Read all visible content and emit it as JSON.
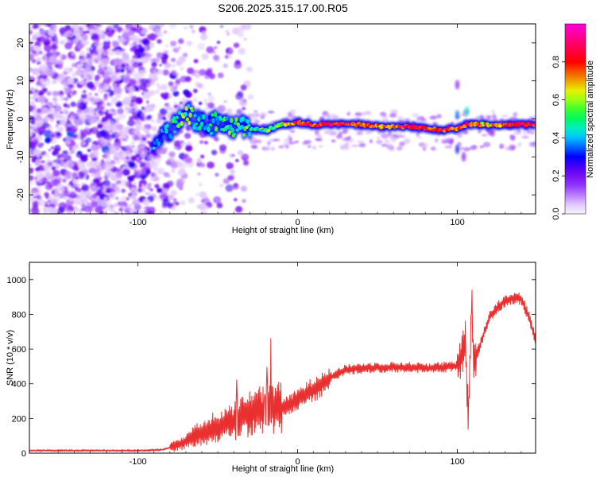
{
  "title": "S206.2025.315.17.00.R05",
  "chart_data": [
    {
      "type": "heatmap",
      "xlabel": "Height of straight line (km)",
      "ylabel": "Frequency (Hz)",
      "xlim": [
        -168,
        149
      ],
      "ylim": [
        -25,
        25
      ],
      "xticks": [
        -100,
        0,
        100
      ],
      "xtick_labels": [
        "-100",
        "0",
        "100"
      ],
      "yticks": [
        -20,
        -10,
        0,
        10,
        20
      ],
      "ytick_labels": [
        "-20",
        "-10",
        "0",
        "10",
        "20"
      ],
      "colorbar": {
        "label": "Normalized spectral amplitude",
        "range": [
          0,
          1
        ],
        "ticks": [
          0.0,
          0.2,
          0.4,
          0.6,
          0.8
        ],
        "tick_labels": [
          "0.0",
          "0.2",
          "0.4",
          "0.6",
          "0.8"
        ],
        "colormap": "rainbow",
        "colors": [
          "#f0f0ff",
          "#e0c8ff",
          "#8800ff",
          "#0000ff",
          "#00ffff",
          "#00ff00",
          "#ffff00",
          "#ff0000",
          "#ff00ff"
        ]
      },
      "ridge": [
        {
          "x": -90,
          "y": -5.5,
          "amp": 0.3
        },
        {
          "x": -80,
          "y": -3,
          "amp": 0.4
        },
        {
          "x": -70,
          "y": 2,
          "amp": 0.55
        },
        {
          "x": -60,
          "y": -2,
          "amp": 0.4
        },
        {
          "x": -50,
          "y": -1,
          "amp": 0.45
        },
        {
          "x": -40,
          "y": -2,
          "amp": 0.5
        },
        {
          "x": -30,
          "y": -2.5,
          "amp": 0.5
        },
        {
          "x": -20,
          "y": -3,
          "amp": 0.5
        },
        {
          "x": -10,
          "y": -1.5,
          "amp": 0.6
        },
        {
          "x": 0,
          "y": -1,
          "amp": 0.8
        },
        {
          "x": 10,
          "y": -1.5,
          "amp": 0.8
        },
        {
          "x": 20,
          "y": -1.5,
          "amp": 0.9
        },
        {
          "x": 30,
          "y": -1.5,
          "amp": 0.8
        },
        {
          "x": 40,
          "y": -1.5,
          "amp": 0.75
        },
        {
          "x": 50,
          "y": -2,
          "amp": 0.7
        },
        {
          "x": 60,
          "y": -2,
          "amp": 0.75
        },
        {
          "x": 70,
          "y": -2,
          "amp": 0.85
        },
        {
          "x": 80,
          "y": -2.5,
          "amp": 0.8
        },
        {
          "x": 90,
          "y": -3,
          "amp": 0.85
        },
        {
          "x": 100,
          "y": -2.5,
          "amp": 0.7
        },
        {
          "x": 106,
          "y": -1.5,
          "amp": 0.85
        },
        {
          "x": 110,
          "y": -1.5,
          "amp": 0.7
        },
        {
          "x": 120,
          "y": -1.5,
          "amp": 0.7
        },
        {
          "x": 130,
          "y": -1.5,
          "amp": 0.75
        },
        {
          "x": 140,
          "y": -1.5,
          "amp": 0.85
        },
        {
          "x": 149,
          "y": -1.5,
          "amp": 0.8
        }
      ]
    },
    {
      "type": "line",
      "xlabel": "Height of straight line (km)",
      "ylabel": "SNR (10 * v/v)",
      "xlim": [
        -168,
        149
      ],
      "ylim": [
        0,
        1100
      ],
      "xticks": [
        -100,
        0,
        100
      ],
      "xtick_labels": [
        "-100",
        "0",
        "100"
      ],
      "yticks": [
        0,
        200,
        400,
        600,
        800,
        1000
      ],
      "ytick_labels": [
        "0",
        "200",
        "400",
        "600",
        "800",
        "1000"
      ],
      "series": [
        {
          "name": "SNR",
          "color": "#e83030",
          "x": [
            -168,
            -150,
            -130,
            -110,
            -95,
            -85,
            -75,
            -68,
            -60,
            -52,
            -45,
            -38,
            -32,
            -25,
            -18,
            -12,
            -5,
            0,
            5,
            10,
            15,
            20,
            25,
            30,
            40,
            50,
            60,
            70,
            80,
            90,
            100,
            103,
            105,
            106,
            107,
            108,
            109,
            110,
            112,
            115,
            120,
            125,
            130,
            135,
            140,
            145,
            149
          ],
          "values": [
            15,
            15,
            15,
            15,
            15,
            20,
            45,
            80,
            120,
            150,
            170,
            190,
            220,
            240,
            260,
            270,
            280,
            310,
            340,
            370,
            400,
            430,
            460,
            480,
            490,
            495,
            495,
            495,
            490,
            495,
            500,
            570,
            650,
            350,
            180,
            600,
            900,
            520,
            560,
            650,
            780,
            840,
            880,
            895,
            890,
            780,
            650
          ]
        }
      ]
    }
  ]
}
